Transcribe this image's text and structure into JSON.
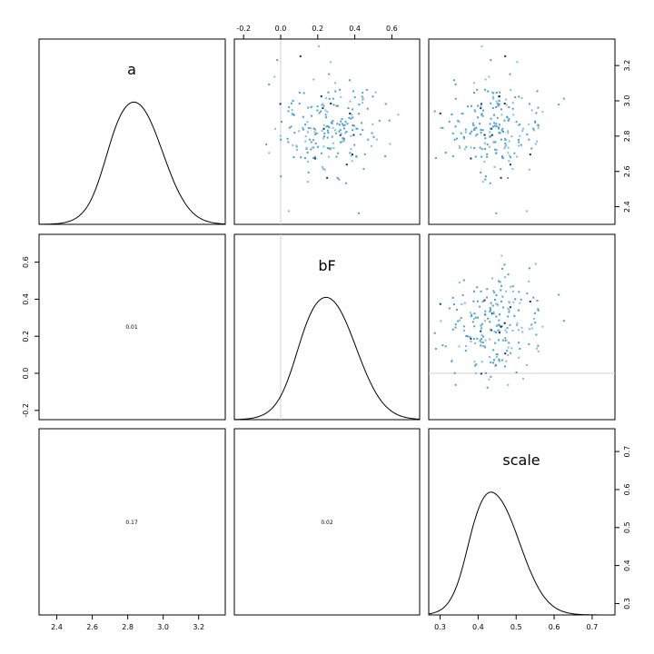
{
  "chart_data": {
    "type": "scatter",
    "variables": [
      "a",
      "bF",
      "scale"
    ],
    "ranges": {
      "a": [
        2.3,
        3.35
      ],
      "bF": [
        -0.25,
        0.75
      ],
      "scale": [
        0.27,
        0.76
      ]
    },
    "ticks": {
      "a": [
        "2.4",
        "2.6",
        "2.8",
        "3.0",
        "3.2"
      ],
      "bF": [
        "-0.2",
        "0.0",
        "0.2",
        "0.4",
        "0.6"
      ],
      "scale": [
        "0.3",
        "0.4",
        "0.5",
        "0.6",
        "0.7"
      ]
    },
    "correlations": {
      "a_bF": "0.01",
      "a_scale": "0.17",
      "bF_scale": "0.02"
    },
    "reference_lines": {
      "bF": 0.0
    },
    "posterior_summary": {
      "a": {
        "mode": 2.85,
        "sd": 0.14
      },
      "bF": {
        "mode": 0.26,
        "sd": 0.14
      },
      "scale": {
        "mode": 0.44,
        "sd": 0.055
      }
    },
    "point_colors": [
      "#4a9fd4",
      "#7fbbe3",
      "#08306b"
    ],
    "line_color": "#000000",
    "grid": false
  }
}
